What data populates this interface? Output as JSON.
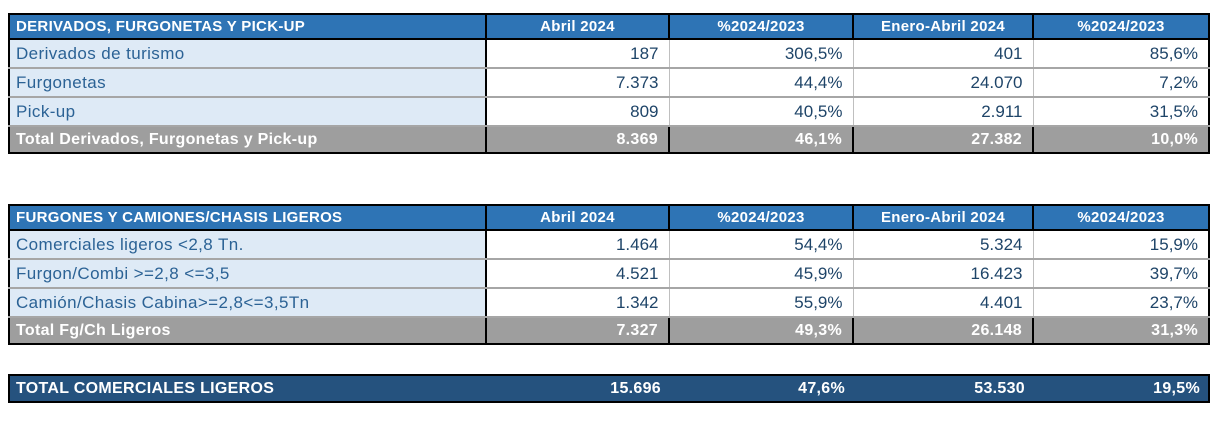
{
  "colors": {
    "header_bg": "#2E74B5",
    "header_text": "#FFFFFF",
    "label_cell_bg": "#DEEAF6",
    "value_cell_bg": "#FFFFFF",
    "label_text": "#2B6295",
    "value_text": "#1E4468",
    "total_row_bg": "#9E9E9E",
    "total_row_text": "#FFFFFF",
    "grand_total_bg": "#25527E",
    "grand_total_text": "#FFFFFF",
    "row_divider": "#A6A6A6",
    "cell_divider": "#BFBFBF",
    "table_border": "#000000"
  },
  "tables": [
    {
      "title": "DERIVADOS, FURGONETAS Y PICK-UP",
      "headers": [
        "Abril 2024",
        "%2024/2023",
        "Enero-Abril 2024",
        "%2024/2023"
      ],
      "rows": [
        [
          "Derivados de turismo",
          "187",
          "306,5%",
          "401",
          "85,6%"
        ],
        [
          "Furgonetas",
          "7.373",
          "44,4%",
          "24.070",
          "7,2%"
        ],
        [
          "Pick-up",
          "809",
          "40,5%",
          "2.911",
          "31,5%"
        ]
      ],
      "total": [
        "Total Derivados, Furgonetas y Pick-up",
        "8.369",
        "46,1%",
        "27.382",
        "10,0%"
      ]
    },
    {
      "title": "FURGONES Y CAMIONES/CHASIS LIGEROS",
      "headers": [
        "Abril 2024",
        "%2024/2023",
        "Enero-Abril 2024",
        "%2024/2023"
      ],
      "rows": [
        [
          "Comerciales ligeros <2,8 Tn.",
          "1.464",
          "54,4%",
          "5.324",
          "15,9%"
        ],
        [
          "Furgon/Combi >=2,8 <=3,5",
          "4.521",
          "45,9%",
          "16.423",
          "39,7%"
        ],
        [
          "Camión/Chasis Cabina>=2,8<=3,5Tn",
          "1.342",
          "55,9%",
          "4.401",
          "23,7%"
        ]
      ],
      "total": [
        "Total Fg/Ch Ligeros",
        "7.327",
        "49,3%",
        "26.148",
        "31,3%"
      ]
    }
  ],
  "grand_total": [
    "TOTAL COMERCIALES LIGEROS",
    "15.696",
    "47,6%",
    "53.530",
    "19,5%"
  ],
  "chart_data": [
    {
      "type": "table",
      "title": "DERIVADOS, FURGONETAS Y PICK-UP",
      "columns": [
        "Abril 2024",
        "%2024/2023",
        "Enero-Abril 2024",
        "%2024/2023"
      ],
      "rows": [
        {
          "label": "Derivados de turismo",
          "abril_2024": 187,
          "pct_2024_2023_mes": 306.5,
          "enero_abril_2024": 401,
          "pct_2024_2023_acumulado": 85.6
        },
        {
          "label": "Furgonetas",
          "abril_2024": 7373,
          "pct_2024_2023_mes": 44.4,
          "enero_abril_2024": 24070,
          "pct_2024_2023_acumulado": 7.2
        },
        {
          "label": "Pick-up",
          "abril_2024": 809,
          "pct_2024_2023_mes": 40.5,
          "enero_abril_2024": 2911,
          "pct_2024_2023_acumulado": 31.5
        },
        {
          "label": "Total Derivados, Furgonetas y Pick-up",
          "abril_2024": 8369,
          "pct_2024_2023_mes": 46.1,
          "enero_abril_2024": 27382,
          "pct_2024_2023_acumulado": 10.0
        }
      ]
    },
    {
      "type": "table",
      "title": "FURGONES Y CAMIONES/CHASIS LIGEROS",
      "columns": [
        "Abril 2024",
        "%2024/2023",
        "Enero-Abril 2024",
        "%2024/2023"
      ],
      "rows": [
        {
          "label": "Comerciales ligeros <2,8 Tn.",
          "abril_2024": 1464,
          "pct_2024_2023_mes": 54.4,
          "enero_abril_2024": 5324,
          "pct_2024_2023_acumulado": 15.9
        },
        {
          "label": "Furgon/Combi >=2,8 <=3,5",
          "abril_2024": 4521,
          "pct_2024_2023_mes": 45.9,
          "enero_abril_2024": 16423,
          "pct_2024_2023_acumulado": 39.7
        },
        {
          "label": "Camión/Chasis Cabina>=2,8<=3,5Tn",
          "abril_2024": 1342,
          "pct_2024_2023_mes": 55.9,
          "enero_abril_2024": 4401,
          "pct_2024_2023_acumulado": 23.7
        },
        {
          "label": "Total Fg/Ch Ligeros",
          "abril_2024": 7327,
          "pct_2024_2023_mes": 49.3,
          "enero_abril_2024": 26148,
          "pct_2024_2023_acumulado": 31.3
        }
      ]
    },
    {
      "type": "table",
      "title": "TOTAL COMERCIALES LIGEROS",
      "columns": [
        "Abril 2024",
        "%2024/2023",
        "Enero-Abril 2024",
        "%2024/2023"
      ],
      "rows": [
        {
          "label": "TOTAL COMERCIALES LIGEROS",
          "abril_2024": 15696,
          "pct_2024_2023_mes": 47.6,
          "enero_abril_2024": 53530,
          "pct_2024_2023_acumulado": 19.5
        }
      ]
    }
  ]
}
